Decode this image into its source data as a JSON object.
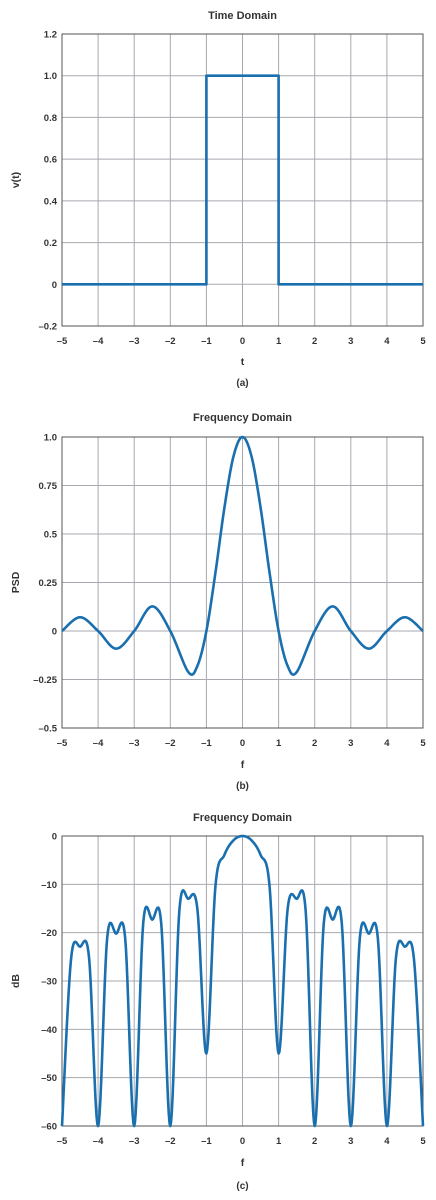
{
  "colors": {
    "line": "#1a6faf",
    "grid": "#a8a8b0",
    "frame": "#555555",
    "text": "#333333"
  },
  "chart_data": [
    {
      "type": "line",
      "title": "Time Domain",
      "xlabel": "t",
      "ylabel": "v(t)",
      "caption": "(a)",
      "xlim": [
        -5,
        5
      ],
      "ylim": [
        -0.2,
        1.2
      ],
      "x_ticks": [
        -5,
        -4,
        -3,
        -2,
        -1,
        0,
        1,
        2,
        3,
        4,
        5
      ],
      "x_tick_labels": [
        "–5",
        "–4",
        "–3",
        "–2",
        "–1",
        "0",
        "1",
        "2",
        "3",
        "4",
        "5"
      ],
      "y_ticks": [
        -0.2,
        0,
        0.2,
        0.4,
        0.6,
        0.8,
        1.0,
        1.2
      ],
      "y_tick_labels": [
        "–0.2",
        "0",
        "0.2",
        "0.4",
        "0.6",
        "0.8",
        "1.0",
        "1.2"
      ],
      "grid": true,
      "series": [
        {
          "x": [
            -5,
            -1,
            -1,
            1,
            1,
            5
          ],
          "y": [
            0,
            0,
            1,
            1,
            0,
            0
          ]
        }
      ]
    },
    {
      "type": "line",
      "title": "Frequency Domain",
      "xlabel": "f",
      "ylabel": "PSD",
      "caption": "(b)",
      "xlim": [
        -5,
        5
      ],
      "ylim": [
        -0.5,
        1.0
      ],
      "x_ticks": [
        -5,
        -4,
        -3,
        -2,
        -1,
        0,
        1,
        2,
        3,
        4,
        5
      ],
      "x_tick_labels": [
        "–5",
        "–4",
        "–3",
        "–2",
        "–1",
        "0",
        "1",
        "2",
        "3",
        "4",
        "5"
      ],
      "y_ticks": [
        -0.5,
        -0.25,
        0,
        0.25,
        0.5,
        0.75,
        1.0
      ],
      "y_tick_labels": [
        "–0.5",
        "–0.25",
        "0",
        "0.25",
        "0.5",
        "0.75",
        "1.0"
      ],
      "grid": true,
      "series": [
        {
          "x": [
            -5,
            -4.5,
            -4,
            -3.5,
            -3,
            -2.5,
            -2,
            -1.5,
            -1.25,
            -1,
            -0.75,
            -0.5,
            -0.25,
            0,
            0.25,
            0.5,
            0.75,
            1,
            1.25,
            1.5,
            2,
            2.5,
            3,
            3.5,
            4,
            4.5,
            5
          ],
          "y": [
            0,
            0.071,
            0,
            -0.091,
            0,
            0.127,
            0,
            -0.212,
            -0.18,
            0,
            0.3,
            0.637,
            0.9,
            1.0,
            0.9,
            0.637,
            0.3,
            0,
            -0.18,
            -0.212,
            0,
            0.127,
            0,
            -0.091,
            0,
            0.071,
            0
          ]
        }
      ]
    },
    {
      "type": "line",
      "title": "Frequency Domain",
      "xlabel": "f",
      "ylabel": "dB",
      "caption": "(c)",
      "xlim": [
        -5,
        5
      ],
      "ylim": [
        -60,
        0
      ],
      "x_ticks": [
        -5,
        -4,
        -3,
        -2,
        -1,
        0,
        1,
        2,
        3,
        4,
        5
      ],
      "x_tick_labels": [
        "–5",
        "–4",
        "–3",
        "–2",
        "–1",
        "0",
        "1",
        "2",
        "3",
        "4",
        "5"
      ],
      "y_ticks": [
        -60,
        -50,
        -40,
        -30,
        -20,
        -10,
        0
      ],
      "y_tick_labels": [
        "–60",
        "–50",
        "–40",
        "–30",
        "–20",
        "–10",
        "0"
      ],
      "grid": true,
      "series": [
        {
          "x": [
            -5,
            -4.75,
            -4.5,
            -4.25,
            -4,
            -3.75,
            -3.5,
            -3.25,
            -3,
            -2.75,
            -2.5,
            -2.25,
            -2,
            -1.75,
            -1.5,
            -1.25,
            -1,
            -0.75,
            -0.5,
            -0.25,
            0,
            0.25,
            0.5,
            0.75,
            1,
            1.25,
            1.5,
            1.75,
            2,
            2.25,
            2.5,
            2.75,
            3,
            3.25,
            3.5,
            3.75,
            4,
            4.25,
            4.5,
            4.75,
            5
          ],
          "y": [
            -60,
            -25.5,
            -22.9,
            -25.2,
            -60,
            -21.2,
            -20.2,
            -21.1,
            -60,
            -18.0,
            -17.3,
            -18.2,
            -60,
            -15.5,
            -13.0,
            -15.1,
            -45,
            -10.4,
            -3.9,
            -0.9,
            0,
            -0.9,
            -3.9,
            -10.4,
            -45,
            -15.1,
            -13.0,
            -15.5,
            -60,
            -18.2,
            -17.3,
            -18.0,
            -60,
            -21.1,
            -20.2,
            -21.2,
            -60,
            -25.2,
            -22.9,
            -25.5,
            -60
          ]
        }
      ]
    }
  ]
}
